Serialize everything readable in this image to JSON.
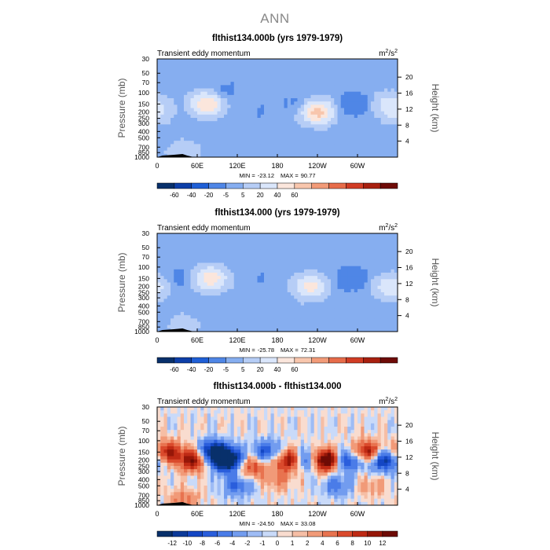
{
  "figure": {
    "title": "ANN"
  },
  "chart_data": [
    {
      "type": "heatmap",
      "title": "flthist134.000b (yrs 1979-1979)",
      "subtitle_left": "Transient eddy momentum",
      "units": {
        "base": "m",
        "sup1": "2",
        "mid": "/s",
        "sup2": "2"
      },
      "ylabel": "Pressure (mb)",
      "ylabel_right": "Height (km)",
      "xticks": [
        "0",
        "60E",
        "120E",
        "180",
        "120W",
        "60W"
      ],
      "yticks": [
        "30",
        "50",
        "70",
        "100",
        "150",
        "200",
        "250",
        "300",
        "400",
        "500",
        "700",
        "850",
        "1000"
      ],
      "yticks_right": [
        "20",
        "16",
        "12",
        "8",
        "4"
      ],
      "stats": {
        "min_label": "MIN =",
        "min": "-23.12",
        "max_label": "MAX =",
        "max": "90.77"
      },
      "colorbar": {
        "levels": [
          "-60",
          "-40",
          "-20",
          "-5",
          "5",
          "20",
          "40",
          "60"
        ],
        "colors": [
          "#08306b",
          "#0d3fa8",
          "#1f5fd6",
          "#4f86e6",
          "#86aef0",
          "#b6cdf6",
          "#dae6fb",
          "#fbe6dc",
          "#f8c6ad",
          "#f29b78",
          "#e76c4a",
          "#d13c24",
          "#a8200f",
          "#6e0b07"
        ]
      },
      "features": [
        {
          "lon": 0,
          "p": 200,
          "v": 20
        },
        {
          "lon": 75,
          "p": 150,
          "v": 60
        },
        {
          "lon": 100,
          "p": 100,
          "v": -10
        },
        {
          "lon": 210,
          "p": 150,
          "v": -10
        },
        {
          "lon": 240,
          "p": 200,
          "v": 70
        },
        {
          "lon": 295,
          "p": 150,
          "v": -20
        },
        {
          "lon": 345,
          "p": 150,
          "v": 25
        },
        {
          "lon": 150,
          "p": 200,
          "v": -5
        },
        {
          "lon": 40,
          "p": 850,
          "v": 20
        }
      ]
    },
    {
      "type": "heatmap",
      "title": "flthist134.000 (yrs 1979-1979)",
      "subtitle_left": "Transient eddy momentum",
      "units": {
        "base": "m",
        "sup1": "2",
        "mid": "/s",
        "sup2": "2"
      },
      "ylabel": "Pressure (mb)",
      "ylabel_right": "Height (km)",
      "xticks": [
        "0",
        "60E",
        "120E",
        "180",
        "120W",
        "60W"
      ],
      "yticks": [
        "30",
        "50",
        "70",
        "100",
        "150",
        "200",
        "250",
        "300",
        "400",
        "500",
        "700",
        "850",
        "1000"
      ],
      "yticks_right": [
        "20",
        "16",
        "12",
        "8",
        "4"
      ],
      "stats": {
        "min_label": "MIN =",
        "min": "-25.78",
        "max_label": "MAX =",
        "max": "72.31"
      },
      "colorbar": {
        "levels": [
          "-60",
          "-40",
          "-20",
          "-5",
          "5",
          "20",
          "40",
          "60"
        ],
        "colors": [
          "#08306b",
          "#0d3fa8",
          "#1f5fd6",
          "#4f86e6",
          "#86aef0",
          "#b6cdf6",
          "#dae6fb",
          "#fbe6dc",
          "#f8c6ad",
          "#f29b78",
          "#e76c4a",
          "#d13c24",
          "#a8200f",
          "#6e0b07"
        ]
      },
      "features": [
        {
          "lon": 0,
          "p": 200,
          "v": 15
        },
        {
          "lon": 80,
          "p": 150,
          "v": 55
        },
        {
          "lon": 30,
          "p": 150,
          "v": -10
        },
        {
          "lon": 230,
          "p": 200,
          "v": 50
        },
        {
          "lon": 290,
          "p": 150,
          "v": -20
        },
        {
          "lon": 345,
          "p": 200,
          "v": 25
        },
        {
          "lon": 150,
          "p": 150,
          "v": -5
        },
        {
          "lon": 40,
          "p": 850,
          "v": 15
        }
      ]
    },
    {
      "type": "heatmap",
      "title": "flthist134.000b - flthist134.000",
      "subtitle_left": "Transient eddy momentum",
      "units": {
        "base": "m",
        "sup1": "2",
        "mid": "/s",
        "sup2": "2"
      },
      "ylabel": "Pressure (mb)",
      "ylabel_right": "Height (km)",
      "xticks": [
        "0",
        "60E",
        "120E",
        "180",
        "120W",
        "60W"
      ],
      "yticks": [
        "30",
        "50",
        "70",
        "100",
        "150",
        "200",
        "250",
        "300",
        "400",
        "500",
        "700",
        "850",
        "1000"
      ],
      "yticks_right": [
        "20",
        "16",
        "12",
        "8",
        "4"
      ],
      "stats": {
        "min_label": "MIN =",
        "min": "-24.50",
        "max_label": "MAX =",
        "max": "33.08"
      },
      "colorbar": {
        "levels": [
          "-12",
          "-10",
          "-8",
          "-6",
          "-4",
          "-2",
          "-1",
          "0",
          "1",
          "2",
          "4",
          "6",
          "8",
          "10",
          "12"
        ],
        "colors": [
          "#08306b",
          "#0c3a99",
          "#1447c4",
          "#2a5edc",
          "#4a7ce8",
          "#729cef",
          "#9ebcf5",
          "#c9daf9",
          "#f9dccf",
          "#f6bea5",
          "#f19a78",
          "#e8734f",
          "#da4a2c",
          "#bf2a14",
          "#961708",
          "#6e0b05"
        ]
      },
      "features": [
        {
          "lon": 15,
          "p": 150,
          "v": 10
        },
        {
          "lon": 55,
          "p": 200,
          "v": 12
        },
        {
          "lon": 85,
          "p": 150,
          "v": -14
        },
        {
          "lon": 105,
          "p": 200,
          "v": -18
        },
        {
          "lon": 140,
          "p": 250,
          "v": 8
        },
        {
          "lon": 165,
          "p": 150,
          "v": -8
        },
        {
          "lon": 200,
          "p": 200,
          "v": 14
        },
        {
          "lon": 225,
          "p": 200,
          "v": -14
        },
        {
          "lon": 250,
          "p": 200,
          "v": 20
        },
        {
          "lon": 285,
          "p": 200,
          "v": -10
        },
        {
          "lon": 315,
          "p": 150,
          "v": 12
        },
        {
          "lon": 340,
          "p": 200,
          "v": -12
        },
        {
          "lon": 120,
          "p": 500,
          "v": -6
        },
        {
          "lon": 270,
          "p": 500,
          "v": -5
        },
        {
          "lon": 180,
          "p": 400,
          "v": 4
        },
        {
          "lon": 40,
          "p": 850,
          "v": 5
        },
        {
          "lon": 320,
          "p": 500,
          "v": 3
        }
      ]
    }
  ]
}
